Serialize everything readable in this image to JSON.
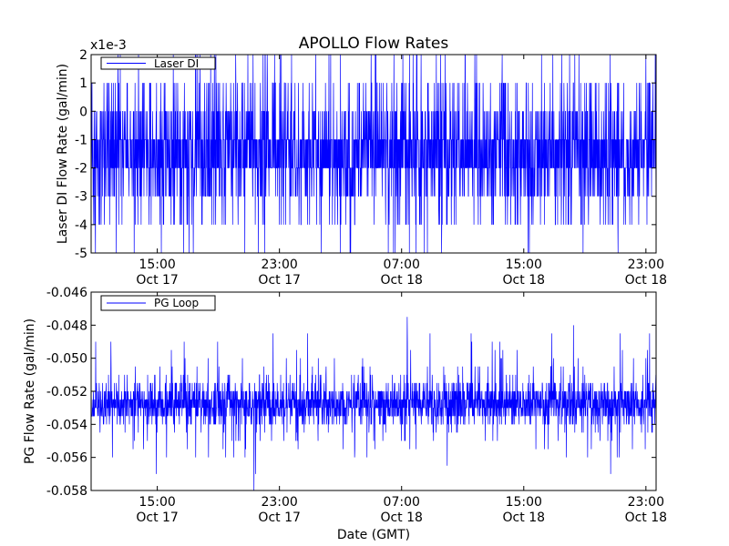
{
  "figure": {
    "title": "APOLLO Flow Rates",
    "xlabel": "Date (GMT)"
  },
  "chart_data": [
    {
      "type": "line",
      "title": "APOLLO Flow Rates",
      "ylabel": "Laser DI Flow Rate (gal/min)",
      "offset_label": "x1e-3",
      "ylim": [
        -0.005,
        0.002
      ],
      "yticks": [
        -0.005,
        -0.004,
        -0.003,
        -0.002,
        -0.001,
        0.0,
        0.001,
        0.002
      ],
      "ytick_labels": [
        "-5",
        "-4",
        "-3",
        "-2",
        "-1",
        "0",
        "1",
        "2"
      ],
      "xlim": [
        "Oct 17 10:40",
        "Oct 18 23:40"
      ],
      "xticks": [
        "Oct 17 15:00",
        "Oct 17 23:00",
        "Oct 18 07:00",
        "Oct 18 15:00",
        "Oct 18 23:00"
      ],
      "xtick_labels": [
        [
          "15:00",
          "Oct 17"
        ],
        [
          "23:00",
          "Oct 17"
        ],
        [
          "07:00",
          "Oct 18"
        ],
        [
          "15:00",
          "Oct 18"
        ],
        [
          "23:00",
          "Oct 18"
        ]
      ],
      "legend_position": "upper-left",
      "grid": false,
      "series": [
        {
          "name": "Laser DI",
          "color": "#0000ff",
          "sampling": "dense quantized readings, step 0.001",
          "level_weights": [
            {
              "y": -0.002,
              "w": 30
            },
            {
              "y": -0.001,
              "w": 30
            },
            {
              "y": 0.0,
              "w": 12
            },
            {
              "y": -0.003,
              "w": 12
            },
            {
              "y": 0.001,
              "w": 6
            },
            {
              "y": -0.004,
              "w": 5
            },
            {
              "y": 0.002,
              "w": 2
            },
            {
              "y": -0.005,
              "w": 1
            }
          ]
        }
      ]
    },
    {
      "type": "line",
      "ylabel": "PG Flow Rate (gal/min)",
      "ylim": [
        -0.058,
        -0.046
      ],
      "yticks": [
        -0.058,
        -0.056,
        -0.054,
        -0.052,
        -0.05,
        -0.048,
        -0.046
      ],
      "ytick_labels": [
        "-0.058",
        "-0.056",
        "-0.054",
        "-0.052",
        "-0.050",
        "-0.048",
        "-0.046"
      ],
      "xlim": [
        "Oct 17 10:40",
        "Oct 18 23:40"
      ],
      "xticks": [
        "Oct 17 15:00",
        "Oct 17 23:00",
        "Oct 18 07:00",
        "Oct 18 15:00",
        "Oct 18 23:00"
      ],
      "xtick_labels": [
        [
          "15:00",
          "Oct 17"
        ],
        [
          "23:00",
          "Oct 17"
        ],
        [
          "07:00",
          "Oct 18"
        ],
        [
          "15:00",
          "Oct 18"
        ],
        [
          "23:00",
          "Oct 18"
        ]
      ],
      "xlabel": "Date (GMT)",
      "legend_position": "upper-left",
      "grid": false,
      "series": [
        {
          "name": "PG Loop",
          "color": "#0000ff",
          "sampling": "dense quantized readings, step 0.0005",
          "level_weights": [
            {
              "y": -0.0525,
              "w": 26
            },
            {
              "y": -0.053,
              "w": 26
            },
            {
              "y": -0.052,
              "w": 14
            },
            {
              "y": -0.0535,
              "w": 14
            },
            {
              "y": -0.0515,
              "w": 6
            },
            {
              "y": -0.054,
              "w": 6
            },
            {
              "y": -0.051,
              "w": 2
            },
            {
              "y": -0.0545,
              "w": 1.5
            },
            {
              "y": -0.0505,
              "w": 1
            },
            {
              "y": -0.055,
              "w": 1
            },
            {
              "y": -0.0555,
              "w": 0.6
            },
            {
              "y": -0.05,
              "w": 0.5
            },
            {
              "y": -0.0495,
              "w": 0.4
            },
            {
              "y": -0.056,
              "w": 0.3
            },
            {
              "y": -0.049,
              "w": 0.3
            },
            {
              "y": -0.0485,
              "w": 0.2
            },
            {
              "y": -0.0565,
              "w": 0.15
            },
            {
              "y": -0.057,
              "w": 0.1
            },
            {
              "y": -0.048,
              "w": 0.06
            },
            {
              "y": -0.0475,
              "w": 0.03
            },
            {
              "y": -0.058,
              "w": 0.03
            }
          ]
        }
      ]
    }
  ]
}
